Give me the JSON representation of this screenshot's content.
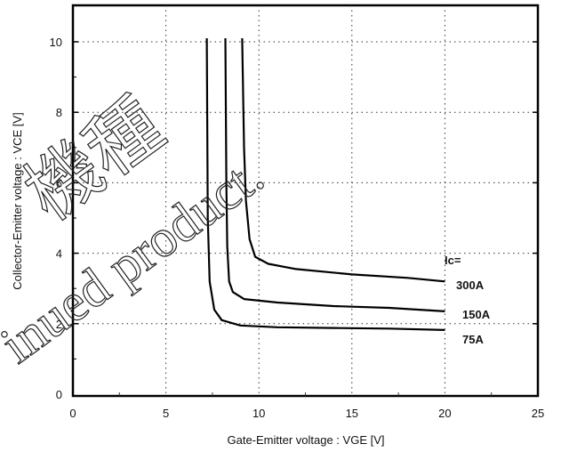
{
  "chart_data": {
    "type": "line",
    "xlabel": "Gate-Emitter  voltage  :  VGE [V]",
    "ylabel": "Collector-Emitter  voltage  :  VCE [V]",
    "xlim": [
      0,
      25
    ],
    "ylim": [
      0,
      11
    ],
    "xticks": [
      "0",
      "5",
      "10",
      "15",
      "20",
      "25"
    ],
    "yticks": [
      "0",
      "2",
      "4",
      "6",
      "8",
      "10"
    ],
    "grid": true,
    "annotation_header": "Ic=",
    "series": [
      {
        "name": "300A",
        "x": [
          9.1,
          9.2,
          9.3,
          9.5,
          9.8,
          10.5,
          12,
          15,
          18,
          20
        ],
        "y": [
          10.1,
          7,
          5.5,
          4.4,
          3.9,
          3.7,
          3.55,
          3.4,
          3.3,
          3.2
        ]
      },
      {
        "name": "150A",
        "x": [
          8.2,
          8.25,
          8.3,
          8.4,
          8.6,
          9.2,
          11,
          14,
          17,
          20
        ],
        "y": [
          10.1,
          6,
          4.2,
          3.2,
          2.9,
          2.7,
          2.6,
          2.5,
          2.45,
          2.35
        ]
      },
      {
        "name": "75A",
        "x": [
          7.2,
          7.25,
          7.35,
          7.6,
          8,
          9,
          11,
          14,
          17,
          20
        ],
        "y": [
          10.1,
          5,
          3.2,
          2.4,
          2.1,
          1.95,
          1.9,
          1.88,
          1.86,
          1.82
        ]
      }
    ]
  },
  "watermark": {
    "line1": "機種",
    "line2": "inued product."
  }
}
